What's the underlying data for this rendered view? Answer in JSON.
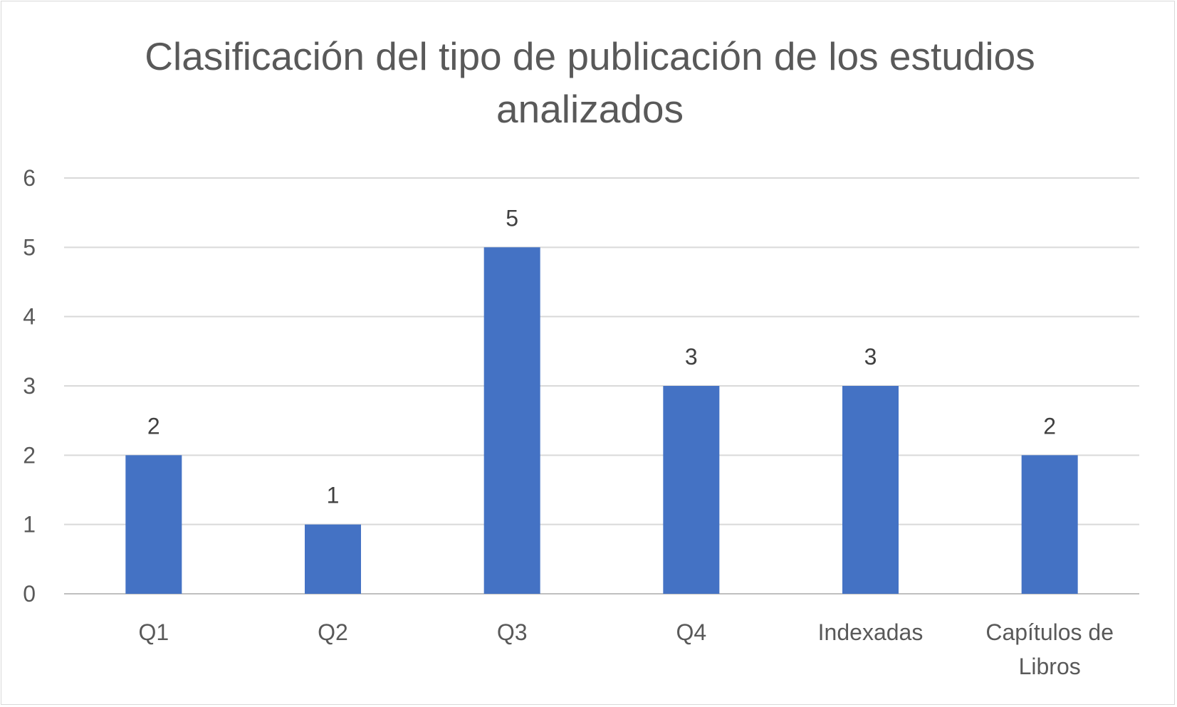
{
  "chart_data": {
    "type": "bar",
    "title": "Clasificación del tipo de publicación de los estudios analizados",
    "categories": [
      "Q1",
      "Q2",
      "Q3",
      "Q4",
      "Indexadas",
      "Capítulos de Libros"
    ],
    "category_lines": [
      [
        "Q1"
      ],
      [
        "Q2"
      ],
      [
        "Q3"
      ],
      [
        "Q4"
      ],
      [
        "Indexadas"
      ],
      [
        "Capítulos de",
        "Libros"
      ]
    ],
    "values": [
      2,
      1,
      5,
      3,
      3,
      2
    ],
    "xlabel": "",
    "ylabel": "",
    "ylim": [
      0,
      6
    ],
    "yticks": [
      0,
      1,
      2,
      3,
      4,
      5,
      6
    ],
    "grid": true,
    "legend": "none",
    "data_labels": true,
    "colors": {
      "bar": "#4472c4",
      "grid": "#d9d9d9",
      "text": "#595959",
      "data_label": "#404040"
    }
  }
}
